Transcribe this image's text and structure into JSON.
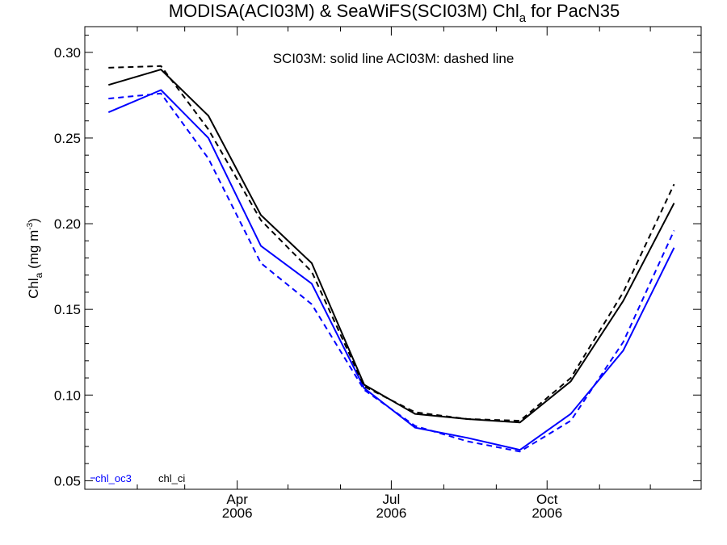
{
  "chart_data": {
    "type": "line",
    "title": {
      "main": "MODISA(ACI03M) & SeaWiFS(SCI03M)  Chl",
      "sub": "a",
      "rest": " for PacN35"
    },
    "ylabel": {
      "main": "Chl",
      "sub": "a",
      "unit": " (mg m",
      "exp": "-3",
      "close": ")"
    },
    "annotation": "SCI03M: solid line   ACI03M: dashed line",
    "x": [
      "2006-01-15",
      "2006-02-15",
      "2006-03-15",
      "2006-04-15",
      "2006-05-15",
      "2006-06-15",
      "2006-07-15",
      "2006-08-15",
      "2006-09-15",
      "2006-10-15",
      "2006-11-15",
      "2006-12-15"
    ],
    "xlim": [
      "2006-01-01",
      "2006-12-31"
    ],
    "ylim": [
      0.045,
      0.315
    ],
    "yticks": [
      "0.05",
      "0.10",
      "0.15",
      "0.20",
      "0.25",
      "0.30"
    ],
    "ytick_values": [
      0.05,
      0.1,
      0.15,
      0.2,
      0.25,
      0.3
    ],
    "xticks": [
      {
        "month": "Apr",
        "year": "2006",
        "date": "2006-04-01"
      },
      {
        "month": "Jul",
        "year": "2006",
        "date": "2006-07-01"
      },
      {
        "month": "Oct",
        "year": "2006",
        "date": "2006-10-01"
      }
    ],
    "minor_ticks": [
      "2006-02-01",
      "2006-03-01",
      "2006-05-01",
      "2006-06-01",
      "2006-08-01",
      "2006-09-01",
      "2006-11-01",
      "2006-12-01"
    ],
    "legend": [
      {
        "name": "chl_oc3",
        "color": "#0000ff"
      },
      {
        "name": "chl_ci",
        "color": "#000000"
      }
    ],
    "series": [
      {
        "product": "chl_oc3",
        "dataset": "SCI03M",
        "color": "#0000ff",
        "style": "solid",
        "values": [
          0.265,
          0.278,
          0.25,
          0.187,
          0.165,
          0.104,
          0.081,
          0.075,
          0.068,
          0.089,
          0.126,
          0.186
        ]
      },
      {
        "product": "chl_oc3",
        "dataset": "ACI03M",
        "color": "#0000ff",
        "style": "dashed",
        "values": [
          0.273,
          0.276,
          0.238,
          0.177,
          0.153,
          0.103,
          0.082,
          0.073,
          0.067,
          0.085,
          0.131,
          0.196
        ]
      },
      {
        "product": "chl_ci",
        "dataset": "SCI03M",
        "color": "#000000",
        "style": "solid",
        "values": [
          0.281,
          0.29,
          0.263,
          0.205,
          0.177,
          0.106,
          0.089,
          0.086,
          0.084,
          0.108,
          0.155,
          0.212
        ]
      },
      {
        "product": "chl_ci",
        "dataset": "ACI03M",
        "color": "#000000",
        "style": "dashed",
        "values": [
          0.291,
          0.292,
          0.255,
          0.202,
          0.172,
          0.105,
          0.09,
          0.086,
          0.085,
          0.11,
          0.16,
          0.223
        ]
      }
    ]
  }
}
